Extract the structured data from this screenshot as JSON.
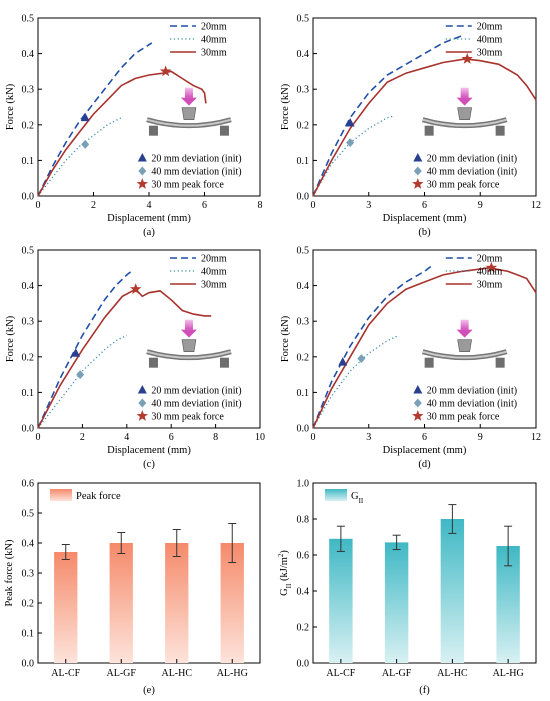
{
  "colors": {
    "blue": "#1f4fa8",
    "blue_marker": "#2a3f8f",
    "teal": "#3d8fb0",
    "teal_marker": "#7aa0b8",
    "red": "#a8322d",
    "red_marker": "#b33a2e",
    "bar_peak": "#f4a582",
    "bar_gii": "#5cc4cc"
  },
  "icons": [
    "loading-nose-arrow-icon",
    "beam-specimen-icon",
    "support-roller-icon"
  ],
  "chart_data": [
    {
      "id": "a",
      "type": "line",
      "caption": "(a)",
      "xlabel": "Displacement (mm)",
      "ylabel": "Force (kN)",
      "xlim": [
        0,
        8
      ],
      "ylim": [
        0,
        0.5
      ],
      "xticks": [
        "0",
        "2",
        "4",
        "6",
        "8"
      ],
      "yticks": [
        "0.0",
        "0.1",
        "0.2",
        "0.3",
        "0.4",
        "0.5"
      ],
      "series": [
        {
          "name": "20mm",
          "style": "dashed",
          "x": [
            0,
            0.5,
            1.0,
            1.5,
            2.0,
            2.5,
            3.0,
            3.5,
            3.9,
            4.1
          ],
          "y": [
            0,
            0.08,
            0.15,
            0.21,
            0.26,
            0.31,
            0.36,
            0.4,
            0.42,
            0.43
          ]
        },
        {
          "name": "40mm",
          "style": "dotted",
          "x": [
            0,
            0.5,
            1.0,
            1.5,
            2.0,
            2.5,
            3.0
          ],
          "y": [
            0,
            0.05,
            0.1,
            0.14,
            0.17,
            0.2,
            0.22
          ]
        },
        {
          "name": "30mm",
          "style": "solid",
          "x": [
            0,
            0.5,
            1.0,
            1.5,
            2.0,
            2.5,
            3.0,
            3.5,
            4.0,
            4.5,
            4.8,
            5.2,
            5.6,
            5.9,
            6.0,
            6.05
          ],
          "y": [
            0,
            0.07,
            0.13,
            0.18,
            0.23,
            0.27,
            0.31,
            0.33,
            0.34,
            0.345,
            0.35,
            0.33,
            0.31,
            0.3,
            0.29,
            0.26
          ]
        }
      ],
      "markers": [
        {
          "label": "20 mm deviation (init)",
          "shape": "triangle",
          "x": 1.7,
          "y": 0.22
        },
        {
          "label": "40 mm deviation (init)",
          "shape": "diamond",
          "x": 1.7,
          "y": 0.145
        },
        {
          "label": "30 mm peak force",
          "shape": "star",
          "x": 4.6,
          "y": 0.35
        }
      ]
    },
    {
      "id": "b",
      "type": "line",
      "caption": "(b)",
      "xlabel": "Displacement (mm)",
      "ylabel": "Force (kN)",
      "xlim": [
        0,
        12
      ],
      "ylim": [
        0,
        0.5
      ],
      "xticks": [
        "0",
        "3",
        "6",
        "9",
        "12"
      ],
      "yticks": [
        "0.0",
        "0.1",
        "0.2",
        "0.3",
        "0.4",
        "0.5"
      ],
      "series": [
        {
          "name": "20mm",
          "style": "dashed",
          "x": [
            0,
            1.0,
            2.0,
            3.0,
            4.0,
            5.0,
            6.0,
            7.0,
            8.0
          ],
          "y": [
            0,
            0.12,
            0.22,
            0.29,
            0.34,
            0.37,
            0.4,
            0.43,
            0.45
          ]
        },
        {
          "name": "40mm",
          "style": "dotted",
          "x": [
            0,
            1.0,
            2.0,
            3.0,
            4.0,
            4.4
          ],
          "y": [
            0,
            0.09,
            0.15,
            0.19,
            0.22,
            0.225
          ]
        },
        {
          "name": "30mm",
          "style": "solid",
          "x": [
            0,
            1.0,
            2.0,
            3.0,
            4.0,
            5.0,
            6.0,
            7.0,
            8.2,
            9.0,
            10.0,
            11.0,
            11.5,
            12.0
          ],
          "y": [
            0,
            0.1,
            0.19,
            0.26,
            0.32,
            0.345,
            0.36,
            0.375,
            0.385,
            0.38,
            0.37,
            0.34,
            0.31,
            0.27
          ]
        }
      ],
      "markers": [
        {
          "label": "20 mm deviation (init)",
          "shape": "triangle",
          "x": 2.0,
          "y": 0.205
        },
        {
          "label": "40 mm deviation (init)",
          "shape": "diamond",
          "x": 2.0,
          "y": 0.15
        },
        {
          "label": "30 mm peak force",
          "shape": "star",
          "x": 8.3,
          "y": 0.385
        }
      ]
    },
    {
      "id": "c",
      "type": "line",
      "caption": "(c)",
      "xlabel": "Displacement (mm)",
      "ylabel": "Force (kN)",
      "xlim": [
        0,
        10
      ],
      "ylim": [
        0,
        0.5
      ],
      "xticks": [
        "0",
        "2",
        "4",
        "6",
        "8",
        "10"
      ],
      "yticks": [
        "0.0",
        "0.1",
        "0.2",
        "0.3",
        "0.4",
        "0.5"
      ],
      "series": [
        {
          "name": "20mm",
          "style": "dashed",
          "x": [
            0,
            0.5,
            1.0,
            1.5,
            2.0,
            2.5,
            3.0,
            3.5,
            4.0,
            4.2
          ],
          "y": [
            0,
            0.07,
            0.14,
            0.2,
            0.26,
            0.31,
            0.36,
            0.4,
            0.43,
            0.44
          ]
        },
        {
          "name": "40mm",
          "style": "dotted",
          "x": [
            0,
            0.5,
            1.0,
            1.5,
            2.0,
            2.5,
            3.0,
            3.5,
            4.0
          ],
          "y": [
            0,
            0.04,
            0.08,
            0.12,
            0.16,
            0.19,
            0.22,
            0.245,
            0.26
          ]
        },
        {
          "name": "30mm",
          "style": "solid",
          "x": [
            0,
            1.0,
            2.0,
            3.0,
            3.8,
            4.4,
            4.7,
            5.0,
            5.5,
            6.0,
            6.5,
            7.0,
            7.5,
            7.8
          ],
          "y": [
            0,
            0.12,
            0.22,
            0.31,
            0.37,
            0.39,
            0.37,
            0.38,
            0.385,
            0.36,
            0.33,
            0.32,
            0.315,
            0.315
          ]
        }
      ],
      "markers": [
        {
          "label": "20 mm deviation (init)",
          "shape": "triangle",
          "x": 1.7,
          "y": 0.21
        },
        {
          "label": "40 mm deviation (init)",
          "shape": "diamond",
          "x": 1.9,
          "y": 0.15
        },
        {
          "label": "30 mm peak force",
          "shape": "star",
          "x": 4.4,
          "y": 0.39
        }
      ]
    },
    {
      "id": "d",
      "type": "line",
      "caption": "(d)",
      "xlabel": "Displacement (mm)",
      "ylabel": "Force (kN)",
      "xlim": [
        0,
        12
      ],
      "ylim": [
        0,
        0.5
      ],
      "xticks": [
        "0",
        "3",
        "6",
        "9",
        "12"
      ],
      "yticks": [
        "0.0",
        "0.1",
        "0.2",
        "0.3",
        "0.4",
        "0.5"
      ],
      "series": [
        {
          "name": "20mm",
          "style": "dashed",
          "x": [
            0,
            1.0,
            2.0,
            3.0,
            4.0,
            5.0,
            6.0,
            6.5
          ],
          "y": [
            0,
            0.13,
            0.23,
            0.31,
            0.37,
            0.41,
            0.44,
            0.46
          ]
        },
        {
          "name": "40mm",
          "style": "dotted",
          "x": [
            0,
            1.0,
            2.0,
            3.0,
            4.0,
            4.6
          ],
          "y": [
            0,
            0.09,
            0.16,
            0.21,
            0.245,
            0.26
          ]
        },
        {
          "name": "30mm",
          "style": "solid",
          "x": [
            0,
            1.0,
            2.0,
            3.0,
            4.0,
            5.0,
            6.0,
            7.0,
            8.0,
            9.5,
            10.5,
            11.0,
            11.5,
            12.0
          ],
          "y": [
            0,
            0.11,
            0.2,
            0.29,
            0.35,
            0.39,
            0.41,
            0.43,
            0.44,
            0.45,
            0.44,
            0.43,
            0.42,
            0.38
          ]
        }
      ],
      "markers": [
        {
          "label": "20 mm deviation (init)",
          "shape": "triangle",
          "x": 1.6,
          "y": 0.185
        },
        {
          "label": "40 mm deviation (init)",
          "shape": "diamond",
          "x": 2.6,
          "y": 0.195
        },
        {
          "label": "30 mm peak force",
          "shape": "star",
          "x": 9.6,
          "y": 0.45
        }
      ]
    },
    {
      "id": "e",
      "type": "bar",
      "caption": "(e)",
      "legend": "Peak force",
      "xlabel": "",
      "ylabel": "Peak force (kN)",
      "ylim": [
        0,
        0.6
      ],
      "yticks": [
        "0.0",
        "0.1",
        "0.2",
        "0.3",
        "0.4",
        "0.5",
        "0.6"
      ],
      "categories": [
        "AL-CF",
        "AL-GF",
        "AL-HC",
        "AL-HG"
      ],
      "values": [
        0.37,
        0.4,
        0.4,
        0.4
      ],
      "errors": [
        0.025,
        0.035,
        0.045,
        0.065
      ]
    },
    {
      "id": "f",
      "type": "bar",
      "caption": "(f)",
      "legend": "G",
      "legend_sub": "II",
      "xlabel": "",
      "ylabel": "G",
      "ylabel_sub": "II",
      "ylabel_unit": " (kJ/m",
      "ylabel_sup": "2",
      "ylabel_end": ")",
      "ylim": [
        0,
        1.0
      ],
      "yticks": [
        "0.0",
        "0.2",
        "0.4",
        "0.6",
        "0.8",
        "1.0"
      ],
      "categories": [
        "AL-CF",
        "AL-GF",
        "AL-HC",
        "AL-HG"
      ],
      "values": [
        0.69,
        0.67,
        0.8,
        0.65
      ],
      "errors": [
        0.07,
        0.04,
        0.08,
        0.11
      ]
    }
  ]
}
